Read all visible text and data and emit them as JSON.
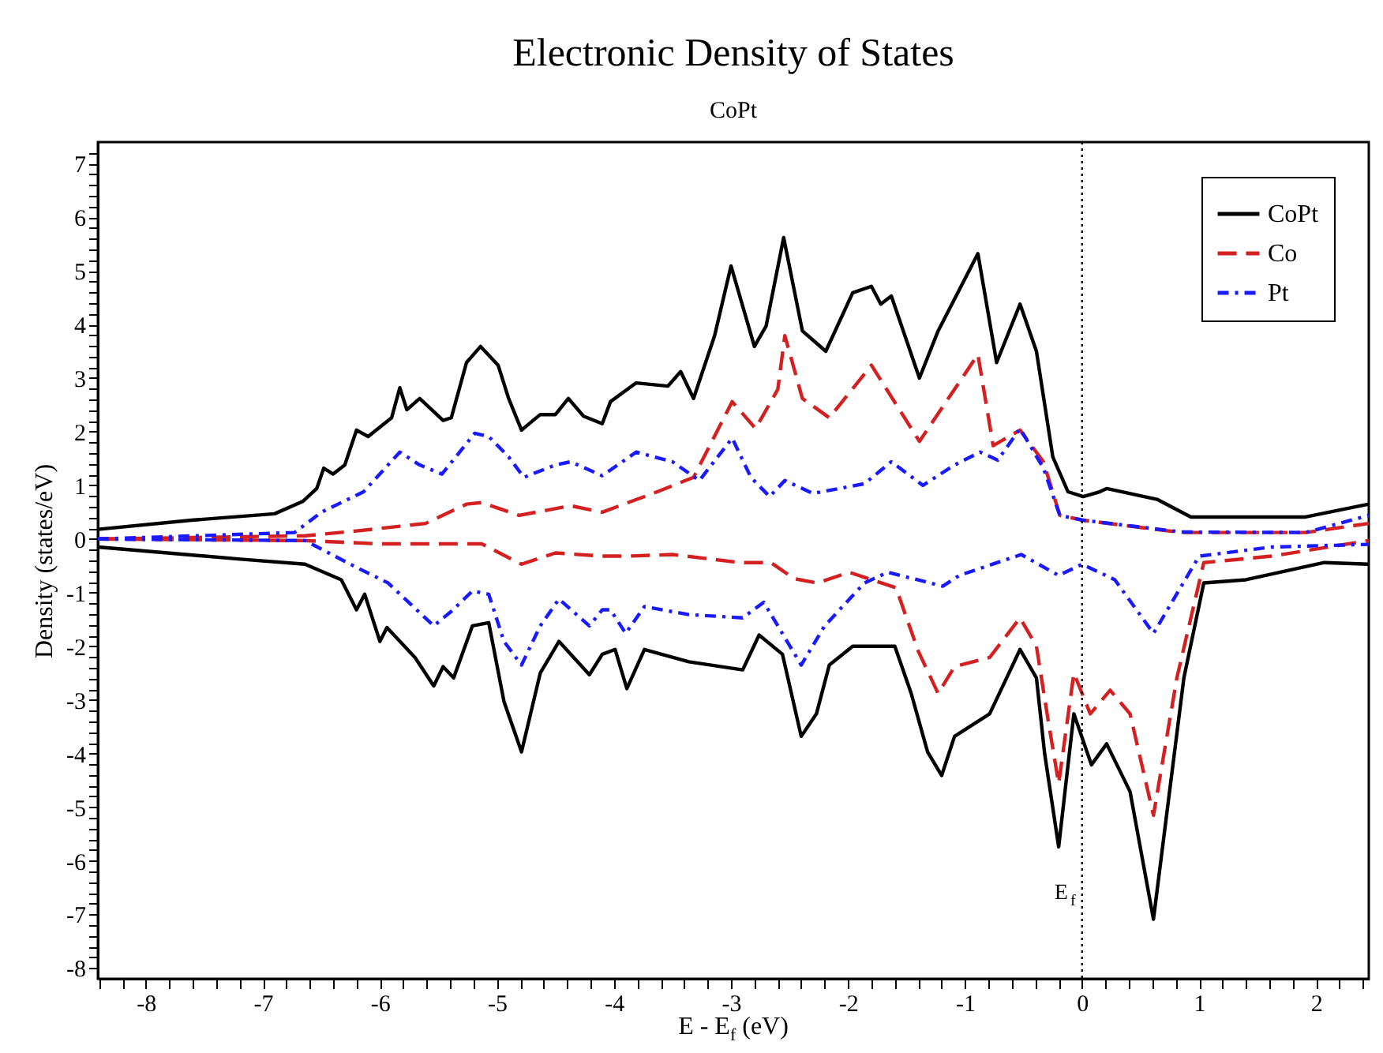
{
  "chart_data": {
    "type": "line",
    "title": "Electronic Density of States",
    "subtitle": "CoPt",
    "xlabel": "E - E$_{f}$ (eV)",
    "ylabel": "Density (states/eV)",
    "legend": "top right",
    "xlim": [
      -8.41,
      2.45
    ],
    "ylim": [
      -8.2,
      7.4
    ],
    "xticks": [
      {
        "value": -8.4,
        "label": null
      },
      {
        "value": -8.2,
        "label": null
      },
      -8,
      {
        "value": -7.8,
        "label": null
      },
      {
        "value": -7.6,
        "label": null
      },
      {
        "value": -7.4,
        "label": null
      },
      {
        "value": -7.2,
        "label": null
      },
      -7,
      {
        "value": -6.8,
        "label": null
      },
      {
        "value": -6.6,
        "label": null
      },
      {
        "value": -6.4,
        "label": null
      },
      {
        "value": -6.2,
        "label": null
      },
      -6,
      {
        "value": -5.8,
        "label": null
      },
      {
        "value": -5.6,
        "label": null
      },
      {
        "value": -5.4,
        "label": null
      },
      {
        "value": -5.2,
        "label": null
      },
      -5,
      {
        "value": -4.8,
        "label": null
      },
      {
        "value": -4.6,
        "label": null
      },
      {
        "value": -4.4,
        "label": null
      },
      {
        "value": -4.2,
        "label": null
      },
      -4,
      {
        "value": -3.8,
        "label": null
      },
      {
        "value": -3.6,
        "label": null
      },
      {
        "value": -3.4,
        "label": null
      },
      {
        "value": -3.2,
        "label": null
      },
      -3,
      {
        "value": -2.8,
        "label": null
      },
      {
        "value": -2.6,
        "label": null
      },
      {
        "value": -2.4,
        "label": null
      },
      {
        "value": -2.2,
        "label": null
      },
      -2,
      {
        "value": -1.8,
        "label": null
      },
      {
        "value": -1.6,
        "label": null
      },
      {
        "value": -1.4,
        "label": null
      },
      {
        "value": -1.2,
        "label": null
      },
      -1,
      {
        "value": -0.8,
        "label": null
      },
      {
        "value": -0.6,
        "label": null
      },
      {
        "value": -0.4,
        "label": null
      },
      {
        "value": -0.2,
        "label": null
      },
      0,
      {
        "value": 0.2,
        "label": null
      },
      {
        "value": 0.4,
        "label": null
      },
      {
        "value": 0.6,
        "label": null
      },
      {
        "value": 0.8,
        "label": null
      },
      1,
      {
        "value": 1.2,
        "label": null
      },
      {
        "value": 1.4,
        "label": null
      },
      {
        "value": 1.6,
        "label": null
      },
      {
        "value": 1.8,
        "label": null
      },
      2,
      {
        "value": 2.2,
        "label": null
      },
      {
        "value": 2.4,
        "label": null
      }
    ],
    "yticks": [
      -8,
      {
        "value": -7.8,
        "label": null
      },
      {
        "value": -7.6,
        "label": null
      },
      {
        "value": -7.4,
        "label": null
      },
      {
        "value": -7.2,
        "label": null
      },
      -7,
      {
        "value": -6.8,
        "label": null
      },
      {
        "value": -6.6,
        "label": null
      },
      {
        "value": -6.4,
        "label": null
      },
      {
        "value": -6.2,
        "label": null
      },
      -6,
      {
        "value": -5.8,
        "label": null
      },
      {
        "value": -5.6,
        "label": null
      },
      {
        "value": -5.4,
        "label": null
      },
      {
        "value": -5.2,
        "label": null
      },
      -5,
      {
        "value": -4.8,
        "label": null
      },
      {
        "value": -4.6,
        "label": null
      },
      {
        "value": -4.4,
        "label": null
      },
      {
        "value": -4.2,
        "label": null
      },
      -4,
      {
        "value": -3.8,
        "label": null
      },
      {
        "value": -3.6,
        "label": null
      },
      {
        "value": -3.4,
        "label": null
      },
      {
        "value": -3.2,
        "label": null
      },
      -3,
      {
        "value": -2.8,
        "label": null
      },
      {
        "value": -2.6,
        "label": null
      },
      {
        "value": -2.4,
        "label": null
      },
      {
        "value": -2.2,
        "label": null
      },
      -2,
      {
        "value": -1.8,
        "label": null
      },
      {
        "value": -1.6,
        "label": null
      },
      {
        "value": -1.4,
        "label": null
      },
      {
        "value": -1.2,
        "label": null
      },
      -1,
      {
        "value": -0.8,
        "label": null
      },
      {
        "value": -0.6,
        "label": null
      },
      {
        "value": -0.4,
        "label": null
      },
      {
        "value": -0.2,
        "label": null
      },
      0,
      {
        "value": 0.2,
        "label": null
      },
      {
        "value": 0.4,
        "label": null
      },
      {
        "value": 0.6,
        "label": null
      },
      {
        "value": 0.8,
        "label": null
      },
      1,
      {
        "value": 1.2,
        "label": null
      },
      {
        "value": 1.4,
        "label": null
      },
      {
        "value": 1.6,
        "label": null
      },
      {
        "value": 1.8,
        "label": null
      },
      2,
      {
        "value": 2.2,
        "label": null
      },
      {
        "value": 2.4,
        "label": null
      },
      {
        "value": 2.6,
        "label": null
      },
      {
        "value": 2.8,
        "label": null
      },
      3,
      {
        "value": 3.2,
        "label": null
      },
      {
        "value": 3.4,
        "label": null
      },
      {
        "value": 3.6,
        "label": null
      },
      {
        "value": 3.8,
        "label": null
      },
      4,
      {
        "value": 4.2,
        "label": null
      },
      {
        "value": 4.4,
        "label": null
      },
      {
        "value": 4.6,
        "label": null
      },
      {
        "value": 4.8,
        "label": null
      },
      5,
      {
        "value": 5.2,
        "label": null
      },
      {
        "value": 5.4,
        "label": null
      },
      {
        "value": 5.6,
        "label": null
      },
      {
        "value": 5.8,
        "label": null
      },
      6,
      {
        "value": 6.2,
        "label": null
      },
      {
        "value": 6.4,
        "label": null
      },
      {
        "value": 6.6,
        "label": null
      },
      {
        "value": 6.8,
        "label": null
      },
      7,
      {
        "value": 7.2,
        "label": null
      }
    ],
    "series": [
      {
        "name": "CoPt",
        "color": "#000000",
        "line_style": "solid",
        "x": [
          -8.41,
          -7.61,
          -6.9,
          -6.66,
          -6.54,
          -6.48,
          -6.4,
          -6.3,
          -6.2,
          -6.1,
          -5.9,
          -5.83,
          -5.77,
          -5.66,
          -5.46,
          -5.39,
          -5.26,
          -5.14,
          -4.99,
          -4.9,
          -4.79,
          -4.63,
          -4.5,
          -4.39,
          -4.26,
          -4.1,
          -4.03,
          -3.81,
          -3.54,
          -3.43,
          -3.32,
          -3.14,
          -3.0,
          -2.8,
          -2.7,
          -2.55,
          -2.39,
          -2.19,
          -1.96,
          -1.8,
          -1.72,
          -1.63,
          -1.39,
          -1.23,
          -0.89,
          -0.73,
          -0.53,
          -0.39,
          -0.25,
          -0.12,
          0.01,
          0.15,
          0.21,
          0.64,
          0.93,
          1.91,
          2.45
        ],
        "values": [
          0.18,
          0.35,
          0.47,
          0.7,
          0.94,
          1.32,
          1.21,
          1.38,
          2.03,
          1.91,
          2.26,
          2.82,
          2.41,
          2.62,
          2.21,
          2.26,
          3.29,
          3.59,
          3.24,
          2.62,
          2.03,
          2.32,
          2.32,
          2.62,
          2.29,
          2.15,
          2.56,
          2.91,
          2.85,
          3.12,
          2.62,
          3.79,
          5.09,
          3.59,
          3.97,
          5.62,
          3.88,
          3.5,
          4.59,
          4.71,
          4.38,
          4.53,
          3.0,
          3.88,
          5.32,
          3.29,
          4.38,
          3.5,
          1.53,
          0.88,
          0.79,
          0.88,
          0.94,
          0.74,
          0.41,
          0.41,
          0.65
        ]
      },
      {
        "color": "#000000",
        "line_style": "solid",
        "x": [
          -8.41,
          -7.17,
          -6.64,
          -6.33,
          -6.2,
          -6.13,
          -6.0,
          -5.94,
          -5.7,
          -5.54,
          -5.46,
          -5.37,
          -5.21,
          -5.07,
          -4.94,
          -4.79,
          -4.63,
          -4.47,
          -4.21,
          -4.1,
          -3.99,
          -3.89,
          -3.74,
          -3.36,
          -2.9,
          -2.76,
          -2.56,
          -2.4,
          -2.27,
          -2.16,
          -1.96,
          -1.6,
          -1.46,
          -1.32,
          -1.2,
          -1.09,
          -0.79,
          -0.53,
          -0.39,
          -0.32,
          -0.2,
          -0.07,
          0.08,
          0.21,
          0.41,
          0.61,
          0.87,
          1.04,
          1.4,
          2.07,
          2.45
        ],
        "values": [
          -0.15,
          -0.38,
          -0.47,
          -0.76,
          -1.32,
          -1.03,
          -1.91,
          -1.65,
          -2.21,
          -2.74,
          -2.38,
          -2.59,
          -1.62,
          -1.56,
          -3.03,
          -3.97,
          -2.5,
          -1.91,
          -2.53,
          -2.15,
          -2.06,
          -2.79,
          -2.06,
          -2.29,
          -2.44,
          -1.79,
          -2.15,
          -3.68,
          -3.26,
          -2.35,
          -2.0,
          -2.0,
          -2.88,
          -3.97,
          -4.41,
          -3.68,
          -3.26,
          -2.06,
          -2.59,
          -4.0,
          -5.74,
          -3.26,
          -4.21,
          -3.82,
          -4.71,
          -7.09,
          -2.59,
          -0.82,
          -0.76,
          -0.44,
          -0.47
        ]
      },
      {
        "name": "Co",
        "color": "#d42020",
        "line_style": "dashed",
        "x": [
          -8.41,
          -6.64,
          -6.2,
          -5.61,
          -5.26,
          -5.13,
          -4.81,
          -4.37,
          -4.1,
          -3.63,
          -3.32,
          -2.99,
          -2.79,
          -2.6,
          -2.54,
          -2.39,
          -2.16,
          -1.8,
          -1.39,
          -0.89,
          -0.76,
          -0.53,
          -0.33,
          -0.19,
          0.01,
          0.85,
          1.91,
          2.45
        ],
        "values": [
          0.0,
          0.06,
          0.15,
          0.29,
          0.65,
          0.68,
          0.44,
          0.62,
          0.5,
          0.88,
          1.15,
          2.56,
          2.06,
          2.79,
          3.79,
          2.62,
          2.26,
          3.24,
          1.82,
          3.44,
          1.74,
          2.03,
          1.44,
          0.44,
          0.35,
          0.12,
          0.12,
          0.29
        ]
      },
      {
        "color": "#d42020",
        "line_style": "dashed",
        "x": [
          -8.41,
          -6.64,
          -6.01,
          -5.13,
          -4.79,
          -4.5,
          -4.1,
          -3.9,
          -3.5,
          -2.92,
          -2.66,
          -2.46,
          -2.26,
          -1.99,
          -1.59,
          -1.4,
          -1.23,
          -1.09,
          -0.79,
          -0.53,
          -0.39,
          -0.29,
          -0.2,
          -0.07,
          0.07,
          0.24,
          0.41,
          0.61,
          0.81,
          1.04,
          1.62,
          2.45
        ],
        "values": [
          0.0,
          -0.03,
          -0.09,
          -0.09,
          -0.47,
          -0.26,
          -0.32,
          -0.32,
          -0.29,
          -0.44,
          -0.44,
          -0.74,
          -0.82,
          -0.62,
          -0.91,
          -2.09,
          -2.88,
          -2.38,
          -2.21,
          -1.47,
          -2.0,
          -3.38,
          -4.56,
          -2.5,
          -3.26,
          -2.82,
          -3.26,
          -5.15,
          -2.59,
          -0.44,
          -0.32,
          -0.03
        ]
      },
      {
        "name": "Pt",
        "color": "#1a1aff",
        "line_style": "dotted",
        "x": [
          -8.41,
          -6.73,
          -6.5,
          -6.14,
          -5.83,
          -5.66,
          -5.47,
          -5.19,
          -5.07,
          -4.9,
          -4.77,
          -4.5,
          -4.37,
          -4.1,
          -3.81,
          -3.5,
          -3.27,
          -2.99,
          -2.83,
          -2.67,
          -2.54,
          -2.3,
          -1.86,
          -1.63,
          -1.36,
          -1.09,
          -0.87,
          -0.72,
          -0.53,
          -0.33,
          -0.19,
          0.01,
          0.85,
          1.91,
          2.45
        ],
        "values": [
          0.0,
          0.12,
          0.5,
          0.88,
          1.62,
          1.38,
          1.21,
          1.97,
          1.91,
          1.53,
          1.15,
          1.38,
          1.44,
          1.18,
          1.62,
          1.44,
          1.09,
          1.88,
          1.15,
          0.79,
          1.09,
          0.85,
          1.03,
          1.44,
          1.0,
          1.38,
          1.62,
          1.47,
          2.06,
          1.32,
          0.44,
          0.35,
          0.13,
          0.12,
          0.44
        ]
      },
      {
        "color": "#1a1aff",
        "line_style": "dotted",
        "x": [
          -8.41,
          -6.64,
          -6.2,
          -5.93,
          -5.54,
          -5.39,
          -5.21,
          -5.07,
          -4.94,
          -4.79,
          -4.63,
          -4.47,
          -4.21,
          -4.1,
          -4.03,
          -3.9,
          -3.74,
          -3.36,
          -2.9,
          -2.72,
          -2.4,
          -2.2,
          -1.86,
          -1.66,
          -1.19,
          -1.05,
          -0.52,
          -0.2,
          0.0,
          0.28,
          0.61,
          1.0,
          1.62,
          2.45
        ],
        "values": [
          0.0,
          -0.03,
          -0.53,
          -0.82,
          -1.62,
          -1.35,
          -0.97,
          -1.03,
          -1.91,
          -2.35,
          -1.62,
          -1.12,
          -1.62,
          -1.32,
          -1.32,
          -1.76,
          -1.26,
          -1.41,
          -1.47,
          -1.18,
          -2.35,
          -1.62,
          -0.82,
          -0.62,
          -0.88,
          -0.68,
          -0.29,
          -0.68,
          -0.47,
          -0.76,
          -1.76,
          -0.32,
          -0.15,
          -0.1
        ]
      }
    ],
    "ref_lines": [
      {
        "axis": "x",
        "value": 0,
        "label": "E$_{f}$",
        "line_style": "dotted",
        "color": "#000000"
      }
    ]
  }
}
